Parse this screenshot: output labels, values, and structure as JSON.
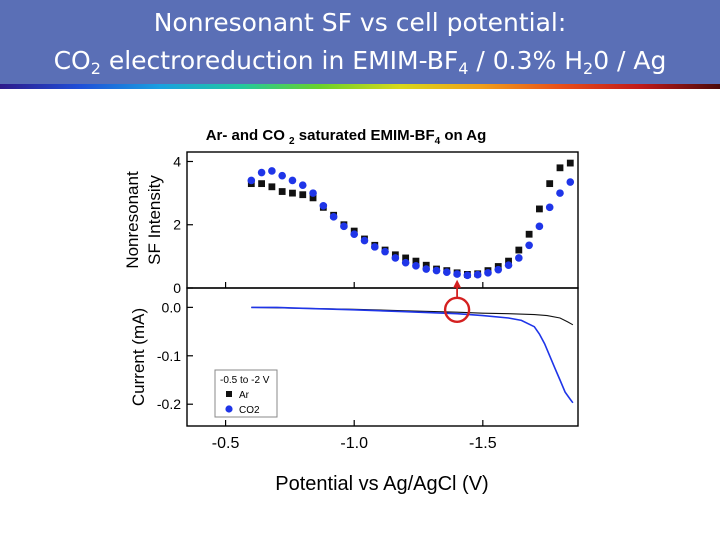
{
  "slide": {
    "title_line1": "Nonresonant SF vs cell potential:",
    "title_line2": {
      "p1": "CO",
      "s1": "2",
      "p2": " electroreduction in EMIM-BF",
      "s2": "4",
      "p3": " / 0.3% H",
      "s3": "2",
      "p4": "0 / Ag"
    },
    "colors": {
      "title_bar": "#5a6fb6",
      "title_text": "#ffffff",
      "ar_series": "#111111",
      "co2_series": "#1f35e8",
      "marker": "#d42020"
    }
  },
  "chart_data": {
    "type": "scatter",
    "title": {
      "p1": "Ar- and CO ",
      "s1": "2",
      "p2": " saturated EMIM-BF",
      "s2": "4",
      "p3": " on Ag"
    },
    "xlabel": "Potential vs Ag/AgCl (V)",
    "x_reversed": true,
    "xlim": [
      -0.35,
      -1.87
    ],
    "x_ticks": [
      -0.5,
      -1.0,
      -1.5
    ],
    "x_tick_labels": [
      "-0.5",
      "-1.0",
      "-1.5"
    ],
    "panels": [
      {
        "id": "sf",
        "ylabel_line1": "Nonresonant",
        "ylabel_line2": "SF Intensity",
        "ylim": [
          0,
          4.3
        ],
        "y_ticks": [
          0,
          2,
          4
        ],
        "y_tick_labels": [
          "0",
          "2",
          "4"
        ],
        "series": [
          {
            "name": "Ar",
            "marker": "square",
            "color": "#111111",
            "x": [
              -0.6,
              -0.64,
              -0.68,
              -0.72,
              -0.76,
              -0.8,
              -0.84,
              -0.88,
              -0.92,
              -0.96,
              -1.0,
              -1.04,
              -1.08,
              -1.12,
              -1.16,
              -1.2,
              -1.24,
              -1.28,
              -1.32,
              -1.36,
              -1.4,
              -1.44,
              -1.48,
              -1.52,
              -1.56,
              -1.6,
              -1.64,
              -1.68,
              -1.72,
              -1.76,
              -1.8,
              -1.84
            ],
            "y": [
              3.3,
              3.3,
              3.2,
              3.05,
              3.0,
              2.95,
              2.85,
              2.55,
              2.3,
              2.0,
              1.8,
              1.55,
              1.35,
              1.2,
              1.05,
              0.95,
              0.85,
              0.72,
              0.6,
              0.55,
              0.48,
              0.43,
              0.45,
              0.55,
              0.68,
              0.85,
              1.2,
              1.7,
              2.5,
              3.3,
              3.8,
              3.95
            ]
          },
          {
            "name": "CO2",
            "marker": "circle",
            "color": "#1f35e8",
            "x": [
              -0.6,
              -0.64,
              -0.68,
              -0.72,
              -0.76,
              -0.8,
              -0.84,
              -0.88,
              -0.92,
              -0.96,
              -1.0,
              -1.04,
              -1.08,
              -1.12,
              -1.16,
              -1.2,
              -1.24,
              -1.28,
              -1.32,
              -1.36,
              -1.4,
              -1.44,
              -1.48,
              -1.52,
              -1.56,
              -1.6,
              -1.64,
              -1.68,
              -1.72,
              -1.76,
              -1.8,
              -1.84
            ],
            "y": [
              3.4,
              3.65,
              3.7,
              3.55,
              3.4,
              3.25,
              3.0,
              2.6,
              2.25,
              1.95,
              1.7,
              1.5,
              1.3,
              1.15,
              0.95,
              0.8,
              0.7,
              0.6,
              0.55,
              0.5,
              0.44,
              0.4,
              0.42,
              0.48,
              0.58,
              0.72,
              0.95,
              1.35,
              1.95,
              2.55,
              3.0,
              3.35
            ]
          }
        ]
      },
      {
        "id": "current",
        "ylabel": "Current (mA)",
        "ylim": [
          -0.245,
          0.04
        ],
        "y_ticks": [
          0.0,
          -0.1,
          -0.2
        ],
        "y_tick_labels": [
          "0.0",
          "-0.1",
          "-0.2"
        ],
        "series": [
          {
            "name": "Ar",
            "color": "#111111",
            "x": [
              -0.6,
              -0.8,
              -1.0,
              -1.2,
              -1.4,
              -1.5,
              -1.6,
              -1.7,
              -1.75,
              -1.8,
              -1.83,
              -1.85
            ],
            "y": [
              0.0,
              -0.002,
              -0.004,
              -0.007,
              -0.01,
              -0.012,
              -0.013,
              -0.015,
              -0.017,
              -0.022,
              -0.03,
              -0.036
            ]
          },
          {
            "name": "CO2",
            "color": "#1f35e8",
            "x": [
              -0.6,
              -0.7,
              -0.8,
              -1.0,
              -1.2,
              -1.4,
              -1.5,
              -1.6,
              -1.65,
              -1.7,
              -1.72,
              -1.74,
              -1.76,
              -1.78,
              -1.8,
              -1.82,
              -1.84,
              -1.85
            ],
            "y": [
              0.0,
              0.0,
              -0.002,
              -0.005,
              -0.009,
              -0.013,
              -0.017,
              -0.022,
              -0.027,
              -0.04,
              -0.055,
              -0.075,
              -0.1,
              -0.125,
              -0.15,
              -0.175,
              -0.19,
              -0.197
            ]
          }
        ],
        "legend": {
          "title": "-0.5 to -2 V",
          "entries": [
            {
              "label": "Ar",
              "marker": "square",
              "color": "#111111"
            },
            {
              "label": "CO2",
              "marker": "circle",
              "color": "#1f35e8"
            }
          ],
          "placement": "bottom-left"
        }
      }
    ],
    "annotation": {
      "type": "circle-with-arrow",
      "x": -1.4,
      "current_y": -0.005,
      "sf_y": 0.45,
      "color": "#d42020"
    }
  }
}
